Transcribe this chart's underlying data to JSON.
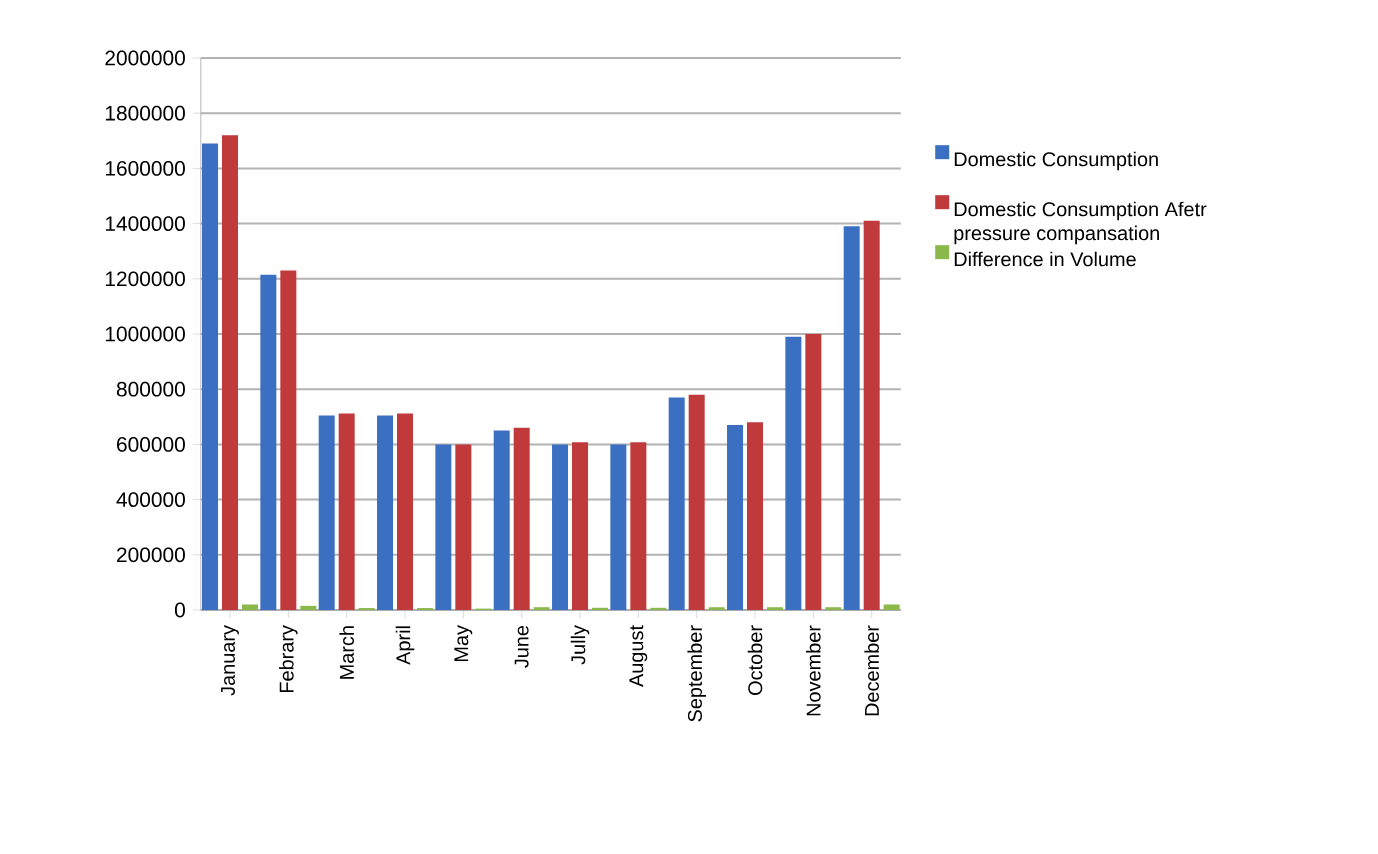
{
  "chart_data": {
    "type": "bar",
    "categories": [
      "January",
      "Febrary",
      "March",
      "April",
      "May",
      "June",
      "Jully",
      "August",
      "September",
      "October",
      "November",
      "December"
    ],
    "series": [
      {
        "name": "Domestic Consumption",
        "color": "#3b6fc2",
        "values": [
          1690000,
          1215000,
          705000,
          705000,
          600000,
          650000,
          600000,
          600000,
          770000,
          670000,
          990000,
          1390000
        ]
      },
      {
        "name": "Domestic Consumption Afetr pressure compansation",
        "color": "#c0393b",
        "values": [
          1720000,
          1230000,
          712000,
          712000,
          600000,
          660000,
          608000,
          608000,
          780000,
          680000,
          1000000,
          1410000
        ]
      },
      {
        "name": "Difference in Volume",
        "color": "#8ab84a",
        "values": [
          20000,
          15000,
          7000,
          7000,
          5000,
          10000,
          8000,
          8000,
          10000,
          10000,
          10000,
          20000
        ]
      }
    ],
    "ylim": [
      0,
      2000000
    ],
    "yticks": [
      0,
      200000,
      400000,
      600000,
      800000,
      1000000,
      1200000,
      1400000,
      1600000,
      1800000,
      2000000
    ],
    "grid": "y",
    "legend": "right"
  }
}
